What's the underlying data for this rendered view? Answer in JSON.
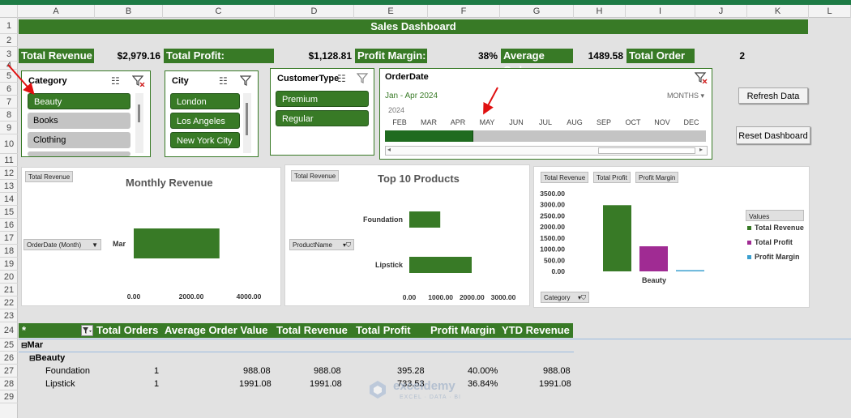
{
  "columns": [
    "A",
    "B",
    "C",
    "D",
    "E",
    "F",
    "G",
    "H",
    "I",
    "J",
    "K",
    "L"
  ],
  "rows": [
    "1",
    "2",
    "3",
    "4",
    "5",
    "6",
    "7",
    "8",
    "9",
    "10",
    "11",
    "12",
    "13",
    "14",
    "15",
    "16",
    "17",
    "18",
    "19",
    "20",
    "21",
    "22",
    "23",
    "24",
    "25",
    "26",
    "27",
    "28",
    "29"
  ],
  "banner": "Sales Dashboard",
  "kpis": {
    "total_revenue_label": "Total Revenue",
    "total_revenue_value": "$2,979.16",
    "total_profit_label": "Total Profit:",
    "total_profit_value": "$1,128.81",
    "profit_margin_label": "Profit Margin:",
    "profit_margin_value": "38%",
    "average_order_label": "Average Order",
    "average_order_value": "1489.58",
    "total_order_label": "Total Order",
    "total_order_value": "2"
  },
  "slicers": {
    "category": {
      "title": "Category",
      "items": [
        "Beauty",
        "Books",
        "Clothing"
      ]
    },
    "city": {
      "title": "City",
      "items": [
        "London",
        "Los Angeles",
        "New York City"
      ]
    },
    "customer_type": {
      "title": "CustomerType",
      "items": [
        "Premium",
        "Regular"
      ]
    }
  },
  "timeline": {
    "title": "OrderDate",
    "range": "Jan - Apr 2024",
    "level": "MONTHS",
    "year": "2024",
    "months": [
      "FEB",
      "MAR",
      "APR",
      "MAY",
      "JUN",
      "JUL",
      "AUG",
      "SEP",
      "OCT",
      "NOV",
      "DEC"
    ],
    "selected_months": 3
  },
  "buttons": {
    "refresh": "Refresh Data",
    "reset": "Reset Dashboard"
  },
  "chart_data": [
    {
      "type": "bar",
      "title": "Monthly Revenue",
      "orientation": "horizontal",
      "field_value": "Total Revenue",
      "field_axis": "OrderDate (Month)",
      "categories": [
        "Mar"
      ],
      "values": [
        2979.16
      ],
      "xlim": [
        0,
        4000
      ],
      "xticks": [
        "0.00",
        "2000.00",
        "4000.00"
      ]
    },
    {
      "type": "bar",
      "title": "Top 10 Products",
      "orientation": "horizontal",
      "field_value": "Total Revenue",
      "field_axis": "ProductName",
      "categories": [
        "Foundation",
        "Lipstick"
      ],
      "values": [
        988.08,
        1991.08
      ],
      "xlim": [
        0,
        3000
      ],
      "xticks": [
        "0.00",
        "1000.00",
        "2000.00",
        "3000.00"
      ]
    },
    {
      "type": "bar",
      "title": "",
      "field_buttons": [
        "Total Revenue",
        "Total Profit",
        "Profit Margin"
      ],
      "field_axis": "Category",
      "categories": [
        "Beauty"
      ],
      "series": [
        {
          "name": "Total Revenue",
          "values": [
            2979.16
          ],
          "color": "#387a26"
        },
        {
          "name": "Total Profit",
          "values": [
            1128.81
          ],
          "color": "#a02b93"
        },
        {
          "name": "Profit Margin",
          "values": [
            0.38
          ],
          "color": "#3a9fcf"
        }
      ],
      "ylim": [
        0,
        3500
      ],
      "yticks": [
        "3500.00",
        "3000.00",
        "2500.00",
        "2000.00",
        "1500.00",
        "1000.00",
        "500.00",
        "0.00"
      ],
      "legend_title": "Values",
      "legend": "right"
    }
  ],
  "pivot": {
    "corner": "*",
    "headers": [
      "Total Orders",
      "Average Order Value",
      "Total Revenue",
      "Total Profit",
      "Profit Margin",
      "YTD Revenue"
    ],
    "month": "Mar",
    "category": "Beauty",
    "rows": [
      {
        "product": "Foundation",
        "orders": "1",
        "avg": "988.08",
        "revenue": "988.08",
        "profit": "395.28",
        "margin": "40.00%",
        "ytd": "988.08"
      },
      {
        "product": "Lipstick",
        "orders": "1",
        "avg": "1991.08",
        "revenue": "1991.08",
        "profit": "733.53",
        "margin": "36.84%",
        "ytd": "1991.08"
      }
    ]
  },
  "watermark": {
    "name": "exceldemy",
    "tagline": "EXCEL · DATA · BI"
  },
  "colors": {
    "accent": "#387a26",
    "excel": "#1e7b45",
    "arrow": "#e01010"
  }
}
